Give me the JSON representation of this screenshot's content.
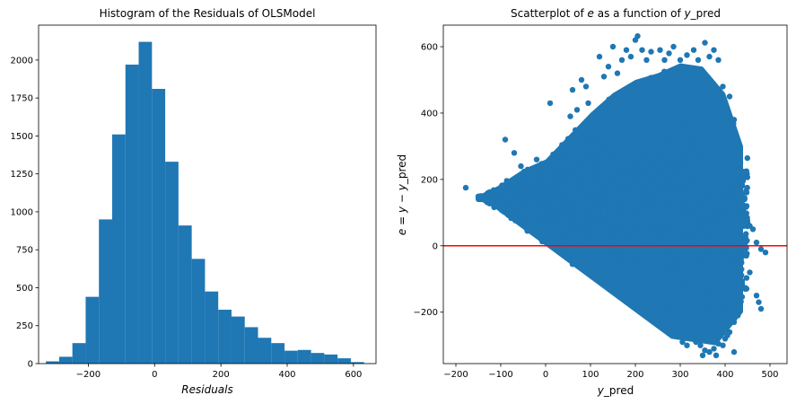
{
  "chart_data": [
    {
      "type": "bar",
      "title": "Histogram of the Residuals of OLSModel",
      "xlabel": "Residuals",
      "ylabel": "",
      "xlim": [
        -350,
        668
      ],
      "ylim": [
        0,
        2230
      ],
      "xticks": [
        -200,
        0,
        200,
        400,
        600
      ],
      "yticks": [
        0,
        250,
        500,
        750,
        1000,
        1250,
        1500,
        1750,
        2000
      ],
      "bin_edges": [
        -328,
        -288,
        -248,
        -208,
        -168,
        -128,
        -88,
        -48,
        -8,
        32,
        72,
        112,
        152,
        192,
        232,
        272,
        312,
        352,
        392,
        432,
        472,
        512,
        552,
        592,
        632
      ],
      "values": [
        15,
        45,
        135,
        440,
        950,
        1510,
        1970,
        2120,
        1810,
        1330,
        910,
        690,
        475,
        355,
        310,
        240,
        170,
        135,
        85,
        90,
        70,
        60,
        35,
        10
      ],
      "color": "#1f77b4"
    },
    {
      "type": "scatter",
      "title": "Scatterplot of e as a function of y_pred",
      "title_parts": [
        "Scatterplot of ",
        "e",
        " as a function of ",
        "y",
        "_pred"
      ],
      "xlabel": "y_pred",
      "ylabel": "e = y − y_pred",
      "ylabel_parts": [
        "e",
        " = ",
        "y",
        " − ",
        "y",
        "_pred"
      ],
      "xlim": [
        -228,
        538
      ],
      "ylim": [
        -355,
        665
      ],
      "xticks": [
        -200,
        -100,
        0,
        100,
        200,
        300,
        400,
        500
      ],
      "yticks": [
        -200,
        0,
        200,
        400,
        600
      ],
      "hline_y": 0,
      "hline_color": "#ff0000",
      "point_color": "#1f77b4",
      "region": {
        "lower_boundary": [
          [
            -140,
            140
          ],
          [
            0,
            0
          ],
          [
            100,
            -100
          ],
          [
            200,
            -200
          ],
          [
            280,
            -280
          ],
          [
            380,
            -300
          ],
          [
            440,
            -200
          ]
        ],
        "upper_boundary": [
          [
            -140,
            150
          ],
          [
            -50,
            230
          ],
          [
            0,
            260
          ],
          [
            100,
            400
          ],
          [
            150,
            460
          ],
          [
            200,
            500
          ],
          [
            250,
            520
          ],
          [
            300,
            550
          ],
          [
            350,
            540
          ],
          [
            400,
            460
          ],
          [
            440,
            300
          ]
        ],
        "note_points_sampled": 3500
      },
      "points": [
        [
          -178,
          175
        ],
        [
          -145,
          150
        ],
        [
          -120,
          130
        ],
        [
          -90,
          320
        ],
        [
          -70,
          280
        ],
        [
          -55,
          240
        ],
        [
          -40,
          230
        ],
        [
          -20,
          260
        ],
        [
          -10,
          200
        ],
        [
          10,
          430
        ],
        [
          20,
          260
        ],
        [
          40,
          290
        ],
        [
          30,
          200
        ],
        [
          60,
          470
        ],
        [
          80,
          500
        ],
        [
          70,
          410
        ],
        [
          55,
          390
        ],
        [
          90,
          480
        ],
        [
          95,
          430
        ],
        [
          120,
          570
        ],
        [
          130,
          510
        ],
        [
          140,
          540
        ],
        [
          150,
          600
        ],
        [
          160,
          520
        ],
        [
          170,
          560
        ],
        [
          180,
          590
        ],
        [
          190,
          570
        ],
        [
          200,
          620
        ],
        [
          205,
          632
        ],
        [
          215,
          590
        ],
        [
          225,
          560
        ],
        [
          235,
          585
        ],
        [
          255,
          590
        ],
        [
          265,
          560
        ],
        [
          275,
          580
        ],
        [
          285,
          600
        ],
        [
          300,
          560
        ],
        [
          315,
          575
        ],
        [
          330,
          590
        ],
        [
          340,
          560
        ],
        [
          355,
          612
        ],
        [
          365,
          570
        ],
        [
          375,
          590
        ],
        [
          385,
          560
        ],
        [
          395,
          480
        ],
        [
          410,
          450
        ],
        [
          420,
          380
        ],
        [
          430,
          300
        ],
        [
          440,
          200
        ],
        [
          448,
          120
        ],
        [
          455,
          60
        ],
        [
          462,
          50
        ],
        [
          470,
          10
        ],
        [
          480,
          -10
        ],
        [
          490,
          -20
        ],
        [
          470,
          -150
        ],
        [
          475,
          -170
        ],
        [
          480,
          -190
        ],
        [
          455,
          -80
        ],
        [
          445,
          -130
        ],
        [
          430,
          -180
        ],
        [
          420,
          -230
        ],
        [
          410,
          -260
        ],
        [
          400,
          -280
        ],
        [
          395,
          -300
        ],
        [
          385,
          -295
        ],
        [
          375,
          -310
        ],
        [
          365,
          -320
        ],
        [
          355,
          -315
        ],
        [
          345,
          -300
        ],
        [
          335,
          -290
        ],
        [
          325,
          -280
        ],
        [
          315,
          -300
        ],
        [
          305,
          -290
        ],
        [
          420,
          -320
        ],
        [
          380,
          -330
        ],
        [
          350,
          -330
        ],
        [
          400,
          -250
        ],
        [
          405,
          -270
        ]
      ]
    }
  ]
}
